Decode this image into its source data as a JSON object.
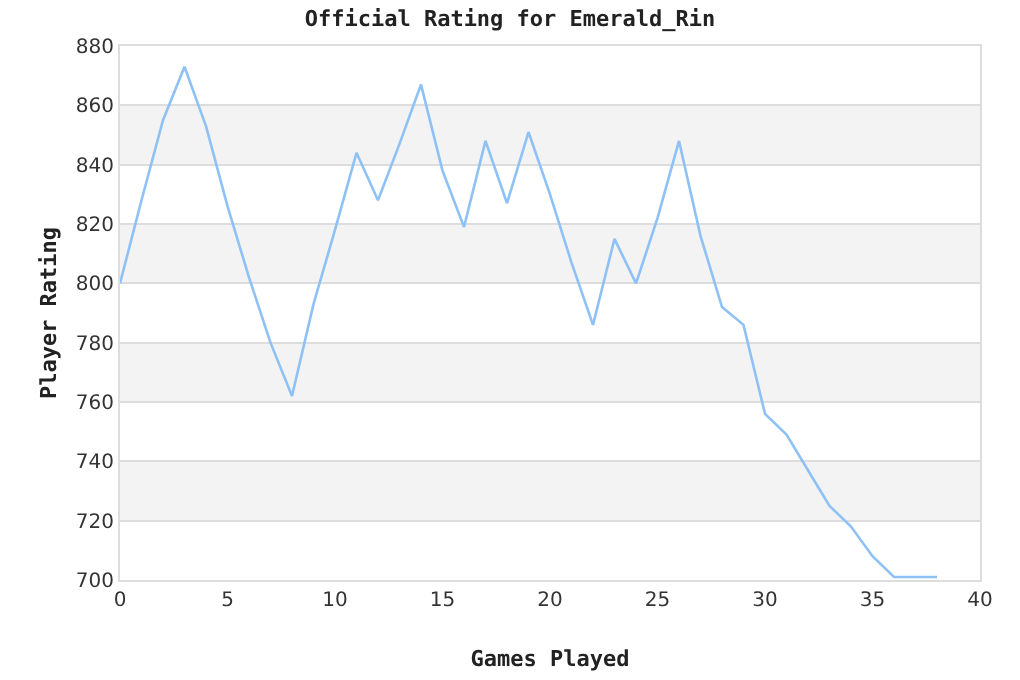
{
  "chart_data": {
    "type": "line",
    "title": "Official Rating for Emerald_Rin",
    "xlabel": "Games Played",
    "ylabel": "Player Rating",
    "x": [
      0,
      1,
      2,
      3,
      4,
      5,
      6,
      7,
      8,
      9,
      10,
      11,
      12,
      13,
      14,
      15,
      16,
      17,
      18,
      19,
      20,
      21,
      22,
      23,
      24,
      25,
      26,
      27,
      28,
      29,
      30,
      31,
      32,
      33,
      34,
      35,
      36,
      37,
      38
    ],
    "series": [
      {
        "color": "#8ec1f5",
        "values": [
          800,
          828,
          855,
          873,
          853,
          826,
          802,
          780,
          762,
          793,
          818,
          844,
          828,
          847,
          867,
          838,
          819,
          848,
          827,
          851,
          830,
          807,
          786,
          815,
          800,
          822,
          848,
          816,
          792,
          786,
          756,
          749,
          737,
          725,
          718,
          708,
          701,
          701,
          701
        ]
      }
    ],
    "xlim": [
      0,
      40
    ],
    "xticks": [
      0,
      5,
      10,
      15,
      20,
      25,
      30,
      35,
      40
    ],
    "ylim": [
      700,
      880
    ],
    "yticks": [
      700,
      720,
      740,
      760,
      780,
      800,
      820,
      840,
      860,
      880
    ],
    "grid": "y",
    "marker": "none",
    "line_style": "solid"
  }
}
